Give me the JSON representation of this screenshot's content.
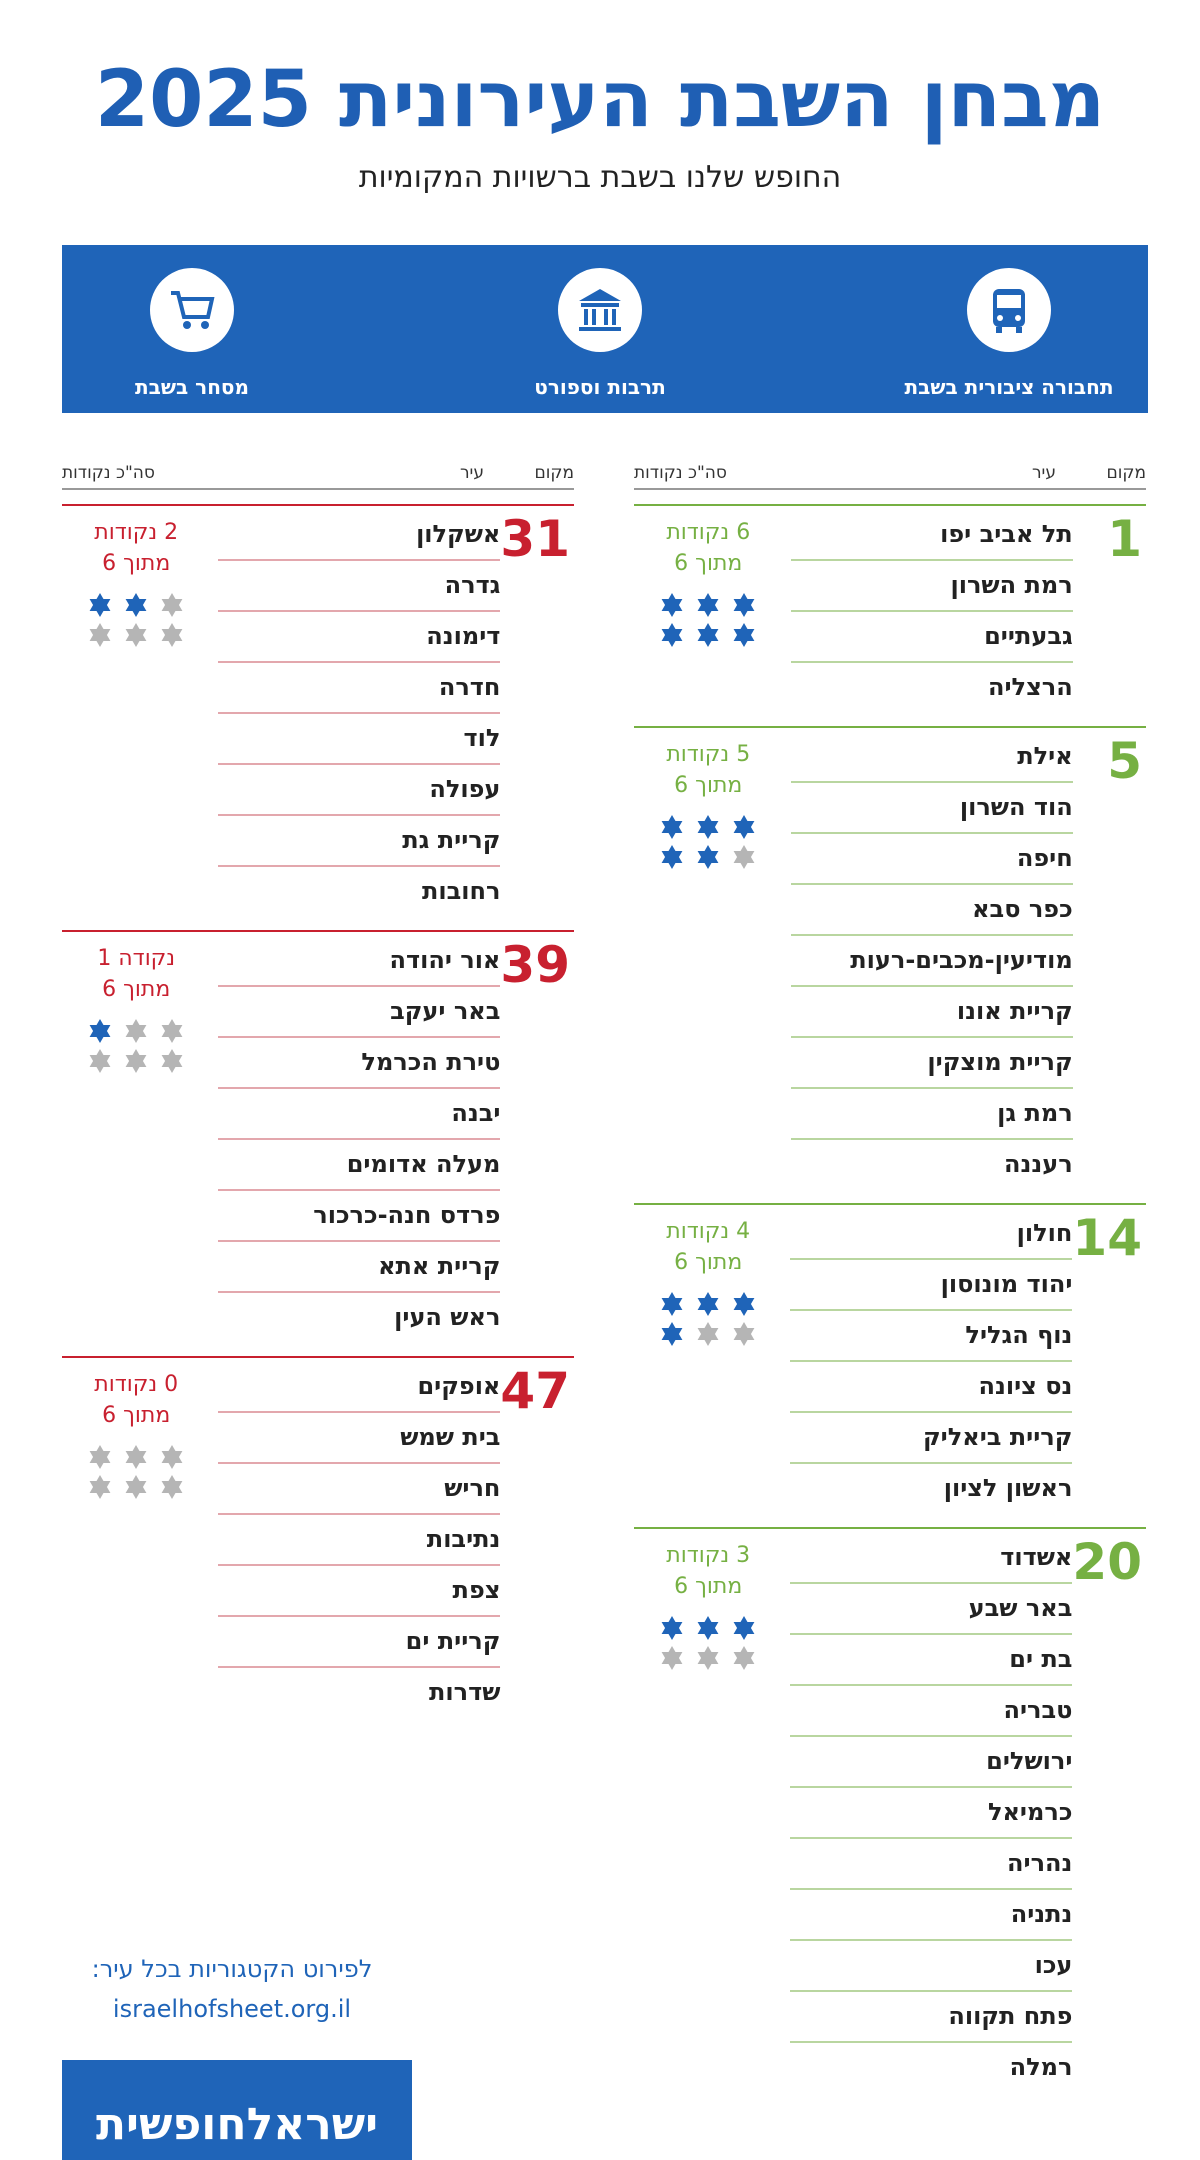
{
  "header": {
    "title": "מבחן השבת העירונית 2025",
    "subtitle": "החופש שלנו בשבת ברשויות המקומיות"
  },
  "categories": [
    "תחבורה ציבורית בשבת",
    "תרבות וספורט",
    "מסחר בשבת"
  ],
  "column_headers": {
    "rank": "מקום",
    "city": "עיר",
    "points": "סה\"כ נקודות"
  },
  "columns": [
    {
      "groups": [
        {
          "rank": "1",
          "points_label": "6 נקודות",
          "out_of": "מתוך 6",
          "points": 6,
          "max": 6,
          "cities": [
            "תל אביב יפו",
            "רמת השרון",
            "גבעתיים",
            "הרצליה"
          ]
        },
        {
          "rank": "5",
          "points_label": "5 נקודות",
          "out_of": "מתוך 6",
          "points": 5,
          "max": 6,
          "cities": [
            "אילת",
            "הוד השרון",
            "חיפה",
            "כפר סבא",
            "מודיעין-מכבים-רעות",
            "קריית אונו",
            "קריית מוצקין",
            "רמת גן",
            "רעננה"
          ]
        },
        {
          "rank": "14",
          "points_label": "4 נקודות",
          "out_of": "מתוך 6",
          "points": 4,
          "max": 6,
          "cities": [
            "חולון",
            "יהוד מונוסון",
            "נוף הגליל",
            "נס ציונה",
            "קריית ביאליק",
            "ראשון לציון"
          ]
        },
        {
          "rank": "20",
          "points_label": "3 נקודות",
          "out_of": "מתוך 6",
          "points": 3,
          "max": 6,
          "cities": [
            "אשדוד",
            "באר שבע",
            "בת ים",
            "טבריה",
            "ירושלים",
            "כרמיאל",
            "נהריה",
            "נתניה",
            "עכו",
            "פתח תקווה",
            "רמלה"
          ]
        }
      ]
    },
    {
      "groups": [
        {
          "rank": "31",
          "points_label": "2 נקודות",
          "out_of": "מתוך 6",
          "points": 2,
          "max": 6,
          "cities": [
            "אשקלון",
            "גדרה",
            "דימונה",
            "חדרה",
            "לוד",
            "עפולה",
            "קריית גת",
            "רחובות"
          ]
        },
        {
          "rank": "39",
          "points_label": "נקודה 1",
          "out_of": "מתוך 6",
          "points": 1,
          "max": 6,
          "cities": [
            "אור יהודה",
            "באר יעקב",
            "טירת הכרמל",
            "יבנה",
            "מעלה אדומים",
            "פרדס חנה-כרכור",
            "קריית אתא",
            "ראש העין"
          ]
        },
        {
          "rank": "47",
          "points_label": "0 נקודות",
          "out_of": "מתוך 6",
          "points": 0,
          "max": 6,
          "cities": [
            "אופקים",
            "בית שמש",
            "חריש",
            "נתיבות",
            "צפת",
            "קריית ים",
            "שדרות"
          ]
        }
      ]
    }
  ],
  "footer": {
    "note": "לפירוט הקטגוריות בכל עיר:",
    "url": "israelhofsheet.org.il",
    "logo": "ישראלחופשית"
  }
}
